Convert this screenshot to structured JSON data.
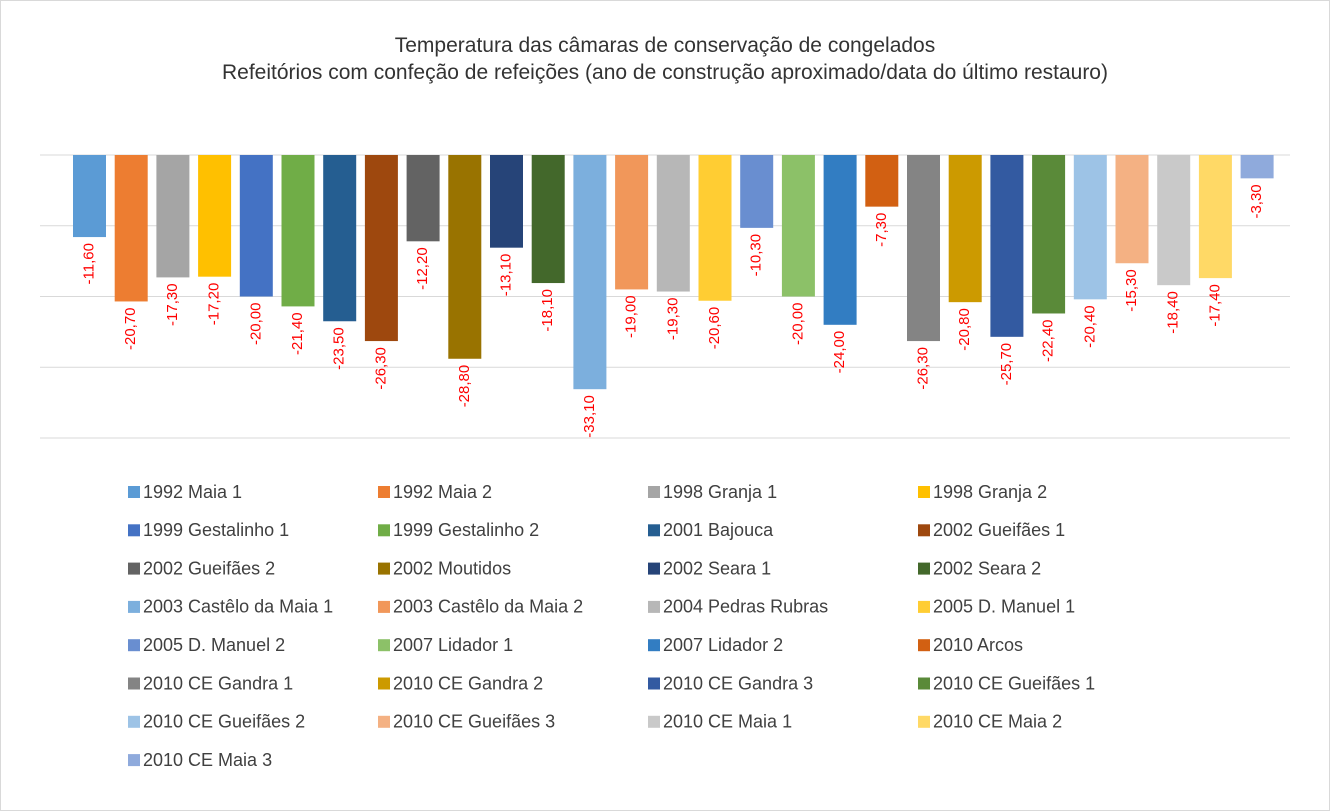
{
  "chart_data": {
    "type": "bar",
    "title": "Temperatura das câmaras de conservação de congelados",
    "subtitle": "Refeitórios com confeção de refeições (ano de construção aproximado/data do último restauro)",
    "ylim": [
      -40,
      0
    ],
    "yticks": [
      -40,
      -30,
      -20,
      -10,
      0
    ],
    "grid": true,
    "legend": "bottom",
    "label_color": "#ff0000",
    "series": [
      {
        "name": "1992 Maia 1",
        "color": "#5B9BD5",
        "values": [
          -11.6
        ],
        "value_labels": [
          "-11,60"
        ]
      },
      {
        "name": "1992 Maia 2",
        "color": "#ED7D31",
        "values": [
          -20.7
        ],
        "value_labels": [
          "-20,70"
        ]
      },
      {
        "name": "1998 Granja 1",
        "color": "#A5A5A5",
        "values": [
          -17.3
        ],
        "value_labels": [
          "-17,30"
        ]
      },
      {
        "name": "1998 Granja 2",
        "color": "#FFC000",
        "values": [
          -17.2
        ],
        "value_labels": [
          "-17,20"
        ]
      },
      {
        "name": "1999 Gestalinho 1",
        "color": "#4472C4",
        "values": [
          -20.0
        ],
        "value_labels": [
          "-20,00"
        ]
      },
      {
        "name": "1999 Gestalinho 2",
        "color": "#70AD47",
        "values": [
          -21.4
        ],
        "value_labels": [
          "-21,40"
        ]
      },
      {
        "name": "2001 Bajouca",
        "color": "#255E91",
        "values": [
          -23.5
        ],
        "value_labels": [
          "-23,50"
        ]
      },
      {
        "name": "2002 Gueifães 1",
        "color": "#9E480E",
        "values": [
          -26.3
        ],
        "value_labels": [
          "-26,30"
        ]
      },
      {
        "name": "2002 Gueifães 2",
        "color": "#636363",
        "values": [
          -12.2
        ],
        "value_labels": [
          "-12,20"
        ]
      },
      {
        "name": "2002 Moutidos",
        "color": "#997300",
        "values": [
          -28.8
        ],
        "value_labels": [
          "-28,80"
        ]
      },
      {
        "name": "2002 Seara 1",
        "color": "#264478",
        "values": [
          -13.1
        ],
        "value_labels": [
          "-13,10"
        ]
      },
      {
        "name": "2002 Seara 2",
        "color": "#43682B",
        "values": [
          -18.1
        ],
        "value_labels": [
          "-18,10"
        ]
      },
      {
        "name": "2003 Castêlo da Maia 1",
        "color": "#7CAFDD",
        "values": [
          -33.1
        ],
        "value_labels": [
          "-33,10"
        ]
      },
      {
        "name": "2003 Castêlo da Maia 2",
        "color": "#F1975A",
        "values": [
          -19.0
        ],
        "value_labels": [
          "-19,00"
        ]
      },
      {
        "name": "2004 Pedras Rubras",
        "color": "#B7B7B7",
        "values": [
          -19.3
        ],
        "value_labels": [
          "-19,30"
        ]
      },
      {
        "name": "2005 D. Manuel 1",
        "color": "#FFCD33",
        "values": [
          -20.6
        ],
        "value_labels": [
          "-20,60"
        ]
      },
      {
        "name": "2005 D. Manuel 2",
        "color": "#698ED0",
        "values": [
          -10.3
        ],
        "value_labels": [
          "-10,30"
        ]
      },
      {
        "name": "2007 Lidador 1",
        "color": "#8CC168",
        "values": [
          -20.0
        ],
        "value_labels": [
          "-20,00"
        ]
      },
      {
        "name": "2007 Lidador 2",
        "color": "#327DC2",
        "values": [
          -24.0
        ],
        "value_labels": [
          "-24,00"
        ]
      },
      {
        "name": "2010 Arcos",
        "color": "#D26012",
        "values": [
          -7.3
        ],
        "value_labels": [
          "-7,30"
        ]
      },
      {
        "name": "2010 CE Gandra 1",
        "color": "#848484",
        "values": [
          -26.3
        ],
        "value_labels": [
          "-26,30"
        ]
      },
      {
        "name": "2010 CE Gandra 2",
        "color": "#CC9A00",
        "values": [
          -20.8
        ],
        "value_labels": [
          "-20,80"
        ]
      },
      {
        "name": "2010 CE Gandra 3",
        "color": "#335AA1",
        "values": [
          -25.7
        ],
        "value_labels": [
          "-25,70"
        ]
      },
      {
        "name": "2010 CE Gueifães 1",
        "color": "#5A8A39",
        "values": [
          -22.4
        ],
        "value_labels": [
          "-22,40"
        ]
      },
      {
        "name": "2010 CE Gueifães 2",
        "color": "#9DC3E6",
        "values": [
          -20.4
        ],
        "value_labels": [
          "-20,40"
        ]
      },
      {
        "name": "2010 CE Gueifães 3",
        "color": "#F4B183",
        "values": [
          -15.3
        ],
        "value_labels": [
          "-15,30"
        ]
      },
      {
        "name": "2010 CE Maia 1",
        "color": "#C9C9C9",
        "values": [
          -18.4
        ],
        "value_labels": [
          "-18,40"
        ]
      },
      {
        "name": "2010 CE Maia 2",
        "color": "#FFD966",
        "values": [
          -17.4
        ],
        "value_labels": [
          "-17,40"
        ]
      },
      {
        "name": "2010 CE Maia 3",
        "color": "#8FAADC",
        "values": [
          -3.3
        ],
        "value_labels": [
          "-3,30"
        ]
      }
    ]
  }
}
